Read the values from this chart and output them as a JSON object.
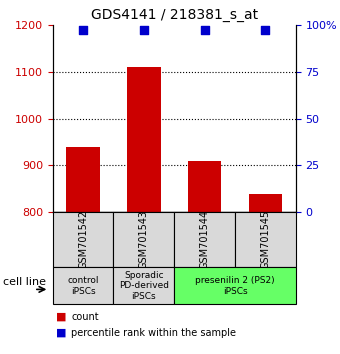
{
  "title": "GDS4141 / 218381_s_at",
  "samples": [
    "GSM701542",
    "GSM701543",
    "GSM701544",
    "GSM701545"
  ],
  "count_values": [
    940,
    1110,
    910,
    840
  ],
  "percentile_values": [
    97,
    97,
    97,
    97
  ],
  "bar_color": "#cc0000",
  "dot_color": "#0000cc",
  "ylim_left": [
    800,
    1200
  ],
  "ylim_right": [
    0,
    100
  ],
  "yticks_left": [
    800,
    900,
    1000,
    1100,
    1200
  ],
  "yticks_right": [
    0,
    25,
    50,
    75,
    100
  ],
  "ytick_labels_right": [
    "0",
    "25",
    "50",
    "75",
    "100%"
  ],
  "grid_values": [
    900,
    1000,
    1100
  ],
  "groups": [
    {
      "label": "control\niPSCs",
      "indices": [
        0
      ],
      "color": "#d9d9d9"
    },
    {
      "label": "Sporadic\nPD-derived\niPSCs",
      "indices": [
        1
      ],
      "color": "#d9d9d9"
    },
    {
      "label": "presenilin 2 (PS2)\niPSCs",
      "indices": [
        2,
        3
      ],
      "color": "#66ff66"
    }
  ],
  "cell_line_label": "cell line",
  "legend_count_label": "count",
  "legend_pct_label": "percentile rank within the sample",
  "bar_width": 0.55,
  "left_tick_color": "#cc0000",
  "right_tick_color": "#0000cc",
  "sample_box_color": "#d9d9d9",
  "bar_bottom": 800
}
